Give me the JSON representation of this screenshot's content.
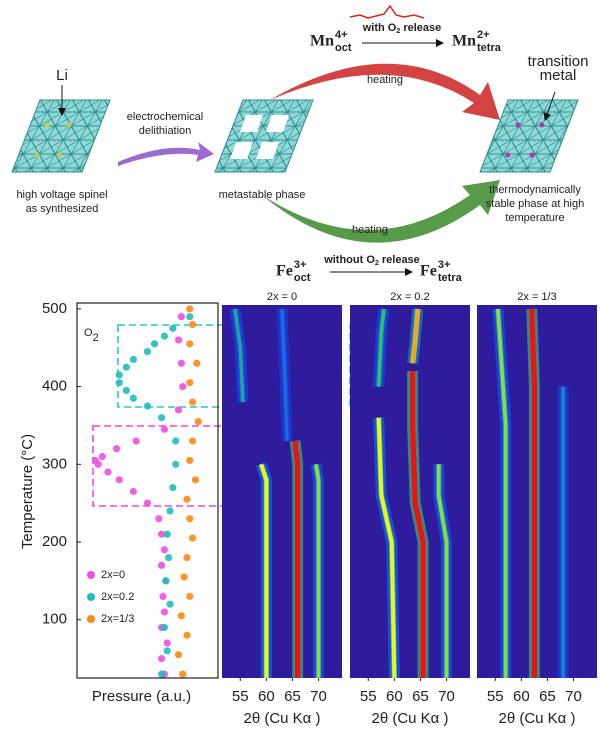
{
  "diagram": {
    "li_label": "Li",
    "transition_metal_label": [
      "transition",
      "metal"
    ],
    "delithiation_label": [
      "electrochemical",
      "delithiation"
    ],
    "heating_top": "heating",
    "heating_bottom": "heating",
    "phases": [
      {
        "label": [
          "high voltage spinel",
          "as synthesized"
        ]
      },
      {
        "label": [
          "metastable phase"
        ]
      },
      {
        "label": [
          "thermodynamically",
          "stable phase at high",
          "temperature"
        ]
      }
    ],
    "mn_reaction": {
      "from": {
        "base": "Mn",
        "sup": "4+",
        "sub": "oct"
      },
      "to": {
        "base": "Mn",
        "sup": "2+",
        "sub": "tetra"
      },
      "note": {
        "prefix": "with O",
        "sub": "2",
        "suffix": " release"
      }
    },
    "fe_reaction": {
      "from": {
        "base": "Fe",
        "sup": "3+",
        "sub": "oct"
      },
      "to": {
        "base": "Fe",
        "sup": "3+",
        "sub": "tetra"
      },
      "note": {
        "prefix": "without O",
        "sub": "2",
        "suffix": " release"
      }
    }
  },
  "chart_data": [
    {
      "type": "scatter",
      "ylabel": "Temperature (°C)",
      "xlabel": "Pressure (a.u.)",
      "ylim": [
        25,
        505
      ],
      "yticks": [
        100,
        200,
        300,
        400,
        500
      ],
      "xlim": [
        0,
        1
      ],
      "annotation": {
        "base": "O",
        "sub": "2"
      },
      "series": [
        {
          "name": "2x=0",
          "color": "#f04ee6",
          "y": [
            30,
            50,
            70,
            90,
            110,
            130,
            150,
            170,
            190,
            210,
            230,
            250,
            265,
            280,
            290,
            300,
            305,
            310,
            320,
            330,
            345,
            370,
            400,
            430,
            460,
            490
          ],
          "x": [
            0.62,
            0.6,
            0.64,
            0.6,
            0.62,
            0.61,
            0.63,
            0.6,
            0.62,
            0.6,
            0.58,
            0.5,
            0.4,
            0.3,
            0.22,
            0.15,
            0.13,
            0.18,
            0.28,
            0.42,
            0.62,
            0.72,
            0.75,
            0.74,
            0.72,
            0.74
          ]
        },
        {
          "name": "2x=0.2",
          "color": "#1fbcbc",
          "y": [
            30,
            60,
            90,
            120,
            150,
            180,
            210,
            240,
            270,
            300,
            330,
            360,
            375,
            385,
            395,
            405,
            415,
            425,
            435,
            445,
            455,
            465,
            475,
            490
          ],
          "x": [
            0.6,
            0.64,
            0.62,
            0.66,
            0.63,
            0.65,
            0.64,
            0.66,
            0.68,
            0.7,
            0.7,
            0.6,
            0.5,
            0.4,
            0.35,
            0.3,
            0.3,
            0.35,
            0.4,
            0.5,
            0.55,
            0.62,
            0.68,
            0.8
          ]
        },
        {
          "name": "2x=1/3",
          "color": "#ff8a10",
          "y": [
            30,
            55,
            80,
            105,
            130,
            155,
            180,
            205,
            230,
            255,
            280,
            305,
            330,
            355,
            380,
            405,
            430,
            455,
            480,
            500
          ],
          "x": [
            0.75,
            0.72,
            0.78,
            0.74,
            0.8,
            0.76,
            0.78,
            0.82,
            0.8,
            0.78,
            0.84,
            0.8,
            0.82,
            0.86,
            0.82,
            0.8,
            0.85,
            0.8,
            0.82,
            0.8
          ]
        }
      ]
    },
    {
      "type": "heatmap",
      "title": "2x = 0",
      "xlabel": "2θ (Cu Kα )",
      "xlim": [
        51.5,
        74.5
      ],
      "xticks": [
        55,
        60,
        65,
        70
      ],
      "ylim": [
        25,
        505
      ],
      "background": "#2f1c9c",
      "peaks": [
        {
          "x": [
            66,
            66,
            65.5
          ],
          "temps": [
            25,
            300,
            330
          ],
          "intensity": 1
        },
        {
          "x": [
            60,
            60,
            59
          ],
          "temps": [
            25,
            280,
            300
          ],
          "intensity": 0.7
        },
        {
          "x": [
            70,
            70,
            69.5
          ],
          "temps": [
            25,
            280,
            300
          ],
          "intensity": 0.6
        },
        {
          "x": [
            64,
            63.5,
            63
          ],
          "temps": [
            330,
            420,
            500
          ],
          "intensity": 0.35
        },
        {
          "x": [
            55.5,
            55,
            54
          ],
          "temps": [
            380,
            450,
            500
          ],
          "intensity": 0.45
        }
      ]
    },
    {
      "type": "heatmap",
      "title": "2x = 0.2",
      "xlabel": "2θ (Cu Kα )",
      "xlim": [
        51.5,
        74.5
      ],
      "xticks": [
        55,
        60,
        65,
        70
      ],
      "ylim": [
        25,
        505
      ],
      "background": "#2f1c9c",
      "peaks": [
        {
          "x": [
            65.5,
            65.5,
            64,
            63.5,
            63.5
          ],
          "temps": [
            25,
            200,
            250,
            350,
            420
          ],
          "intensity": 1
        },
        {
          "x": [
            60,
            59.5,
            57.5,
            57
          ],
          "temps": [
            25,
            200,
            260,
            360
          ],
          "intensity": 0.7
        },
        {
          "x": [
            70,
            70,
            68.5,
            68.5
          ],
          "temps": [
            25,
            200,
            260,
            300
          ],
          "intensity": 0.6
        },
        {
          "x": [
            63.5,
            64,
            64.5
          ],
          "temps": [
            430,
            460,
            500
          ],
          "intensity": 0.8
        },
        {
          "x": [
            57,
            57.5,
            58
          ],
          "temps": [
            400,
            470,
            500
          ],
          "intensity": 0.5
        }
      ]
    },
    {
      "type": "heatmap",
      "title": "2x = 1/3",
      "xlabel": "2θ (Cu Kα )",
      "xlim": [
        51.5,
        74.5
      ],
      "xticks": [
        55,
        60,
        65,
        70
      ],
      "ylim": [
        25,
        505
      ],
      "background": "#2f1c9c",
      "peaks": [
        {
          "x": [
            62.5,
            62.5,
            62
          ],
          "temps": [
            25,
            400,
            500
          ],
          "intensity": 1
        },
        {
          "x": [
            57,
            57,
            55.5
          ],
          "temps": [
            25,
            350,
            500
          ],
          "intensity": 0.6
        },
        {
          "x": [
            68,
            68
          ],
          "temps": [
            25,
            400
          ],
          "intensity": 0.4
        }
      ]
    }
  ]
}
